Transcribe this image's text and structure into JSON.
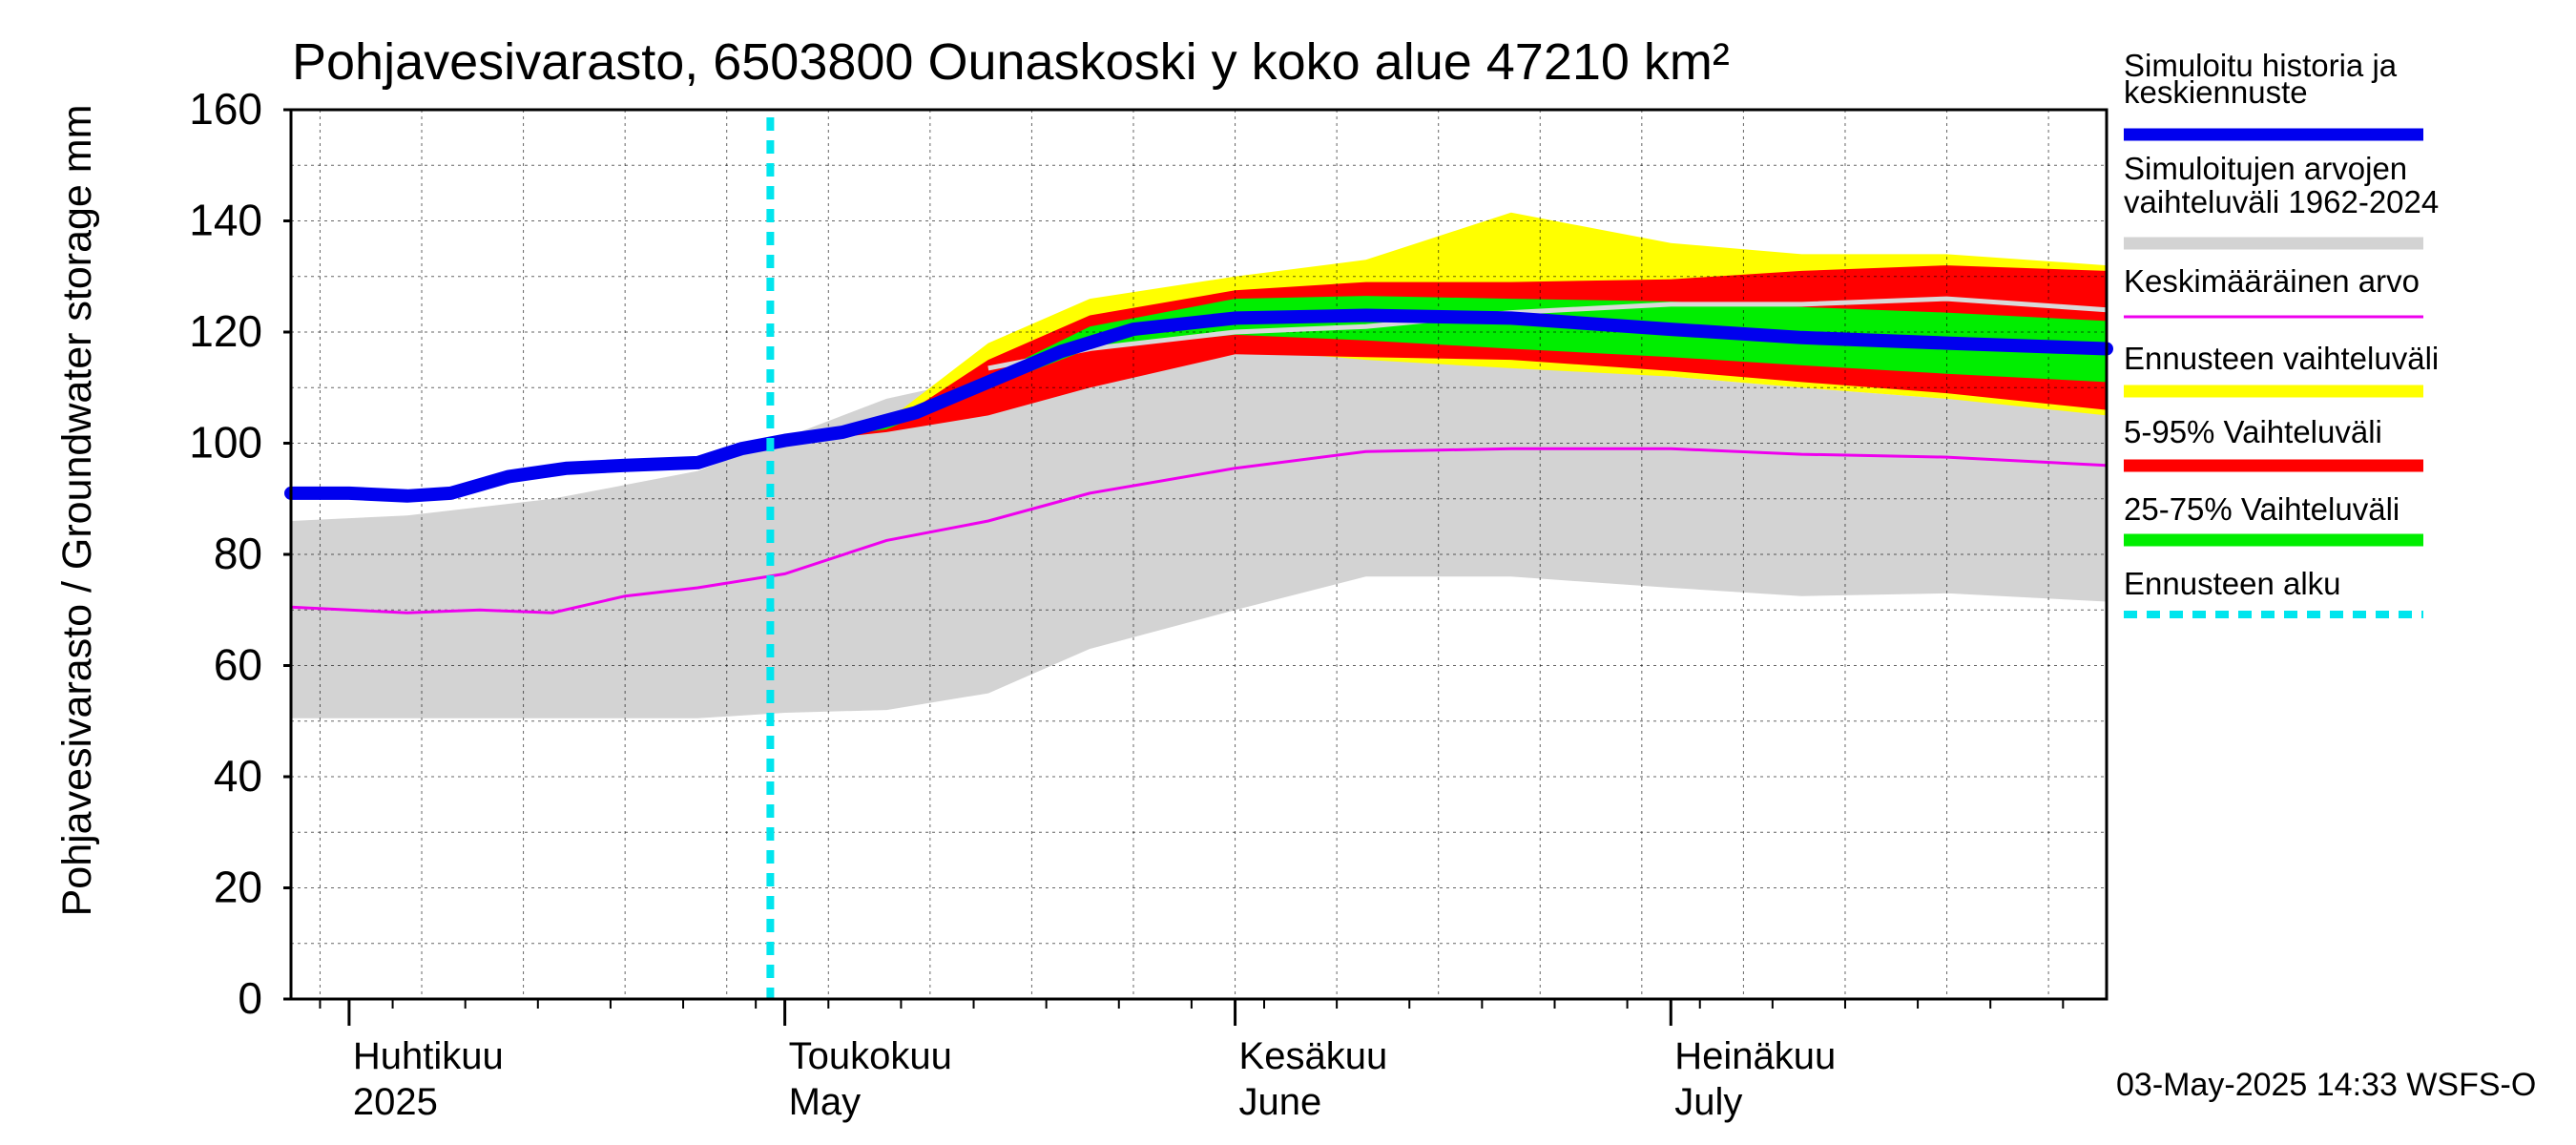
{
  "chart_data": {
    "type": "area",
    "title": "Pohjavesivarasto, 6503800 Ounaskoski y koko alue 47210 km²",
    "ylabel": "Pohjavesivarasto / Groundwater storage   mm",
    "ylim": [
      0,
      160
    ],
    "yticks": [
      0,
      20,
      40,
      60,
      80,
      100,
      120,
      140,
      160
    ],
    "xlim": [
      "2025-03-28",
      "2025-07-31"
    ],
    "grid": true,
    "legend_position": "right",
    "month_labels": [
      {
        "fi": "Huhtikuu",
        "en": "2025",
        "date": "2025-04-01"
      },
      {
        "fi": "Toukokuu",
        "en": "May",
        "date": "2025-05-01"
      },
      {
        "fi": "Kesäkuu",
        "en": "June",
        "date": "2025-06-01"
      },
      {
        "fi": "Heinäkuu",
        "en": "July",
        "date": "2025-07-01"
      }
    ],
    "forecast_start": "2025-04-30",
    "footer": "03-May-2025 14:33 WSFS-O",
    "colors": {
      "history": "#0000ee",
      "range_hist": "#d3d3d3",
      "mean": "#ee00ee",
      "forecast_range": "#ffff00",
      "p5_95": "#ff0000",
      "p25_75": "#00ee00",
      "forecast_start": "#00e5ee",
      "median_hist": "#d9d9d9"
    },
    "legend": [
      {
        "label": "Simuloitu historia ja keskiennuste",
        "color": "#0000ee",
        "style": "thick"
      },
      {
        "label": "Simuloitujen arvojen vaihteluväli 1962-2024",
        "color": "#d3d3d3",
        "style": "thick"
      },
      {
        "label": "Keskimääräinen arvo",
        "color": "#ee00ee",
        "style": "thin"
      },
      {
        "label": "Ennusteen vaihteluväli",
        "color": "#ffff00",
        "style": "thick"
      },
      {
        "label": "5-95% Vaihteluväli",
        "color": "#ff0000",
        "style": "thick"
      },
      {
        "label": "25-75% Vaihteluväli",
        "color": "#00ee00",
        "style": "thick"
      },
      {
        "label": "Ennusteen alku",
        "color": "#00e5ee",
        "style": "dashed"
      }
    ],
    "series": {
      "hist_range": {
        "x": [
          "2025-03-28",
          "2025-04-05",
          "2025-04-15",
          "2025-04-25",
          "2025-05-01",
          "2025-05-08",
          "2025-05-15",
          "2025-05-22",
          "2025-06-01",
          "2025-06-10",
          "2025-06-20",
          "2025-07-01",
          "2025-07-10",
          "2025-07-20",
          "2025-07-31"
        ],
        "lower": [
          50.5,
          50.5,
          50.5,
          50.5,
          51.5,
          52,
          55,
          63,
          70,
          76,
          76,
          74,
          72.5,
          73,
          71.5
        ],
        "upper": [
          86,
          87,
          90,
          95,
          101,
          108,
          112,
          116,
          118,
          117,
          115,
          112,
          110,
          108,
          106
        ]
      },
      "mean": {
        "x": [
          "2025-03-28",
          "2025-04-05",
          "2025-04-10",
          "2025-04-15",
          "2025-04-20",
          "2025-04-25",
          "2025-05-01",
          "2025-05-08",
          "2025-05-15",
          "2025-05-22",
          "2025-06-01",
          "2025-06-10",
          "2025-06-20",
          "2025-07-01",
          "2025-07-10",
          "2025-07-20",
          "2025-07-31"
        ],
        "y": [
          70.5,
          69.5,
          70,
          69.5,
          72.5,
          74,
          76.5,
          82.5,
          86,
          91,
          95.5,
          98.5,
          99,
          99,
          98,
          97.5,
          96
        ]
      },
      "forecast_range": {
        "x": [
          "2025-05-01",
          "2025-05-08",
          "2025-05-15",
          "2025-05-22",
          "2025-06-01",
          "2025-06-10",
          "2025-06-20",
          "2025-07-01",
          "2025-07-10",
          "2025-07-20",
          "2025-07-31"
        ],
        "lower": [
          100,
          103,
          108,
          114,
          117,
          115,
          113.5,
          112,
          110,
          108,
          105
        ],
        "upper": [
          100,
          104,
          118,
          126,
          130,
          133,
          141.5,
          136,
          134,
          134,
          132
        ]
      },
      "p5_95": {
        "x": [
          "2025-05-01",
          "2025-05-08",
          "2025-05-15",
          "2025-05-22",
          "2025-06-01",
          "2025-06-10",
          "2025-06-20",
          "2025-07-01",
          "2025-07-10",
          "2025-07-20",
          "2025-07-31"
        ],
        "lower": [
          100,
          102,
          105,
          110,
          116,
          115.5,
          115,
          113,
          111,
          109,
          106
        ],
        "upper": [
          100,
          103,
          115,
          123,
          127.5,
          129,
          129,
          129.5,
          131,
          132,
          131
        ]
      },
      "p25_75": {
        "x": [
          "2025-05-01",
          "2025-05-08",
          "2025-05-15",
          "2025-05-22",
          "2025-06-01",
          "2025-06-10",
          "2025-06-20",
          "2025-07-01",
          "2025-07-10",
          "2025-07-20",
          "2025-07-31"
        ],
        "lower": [
          100,
          102.5,
          110,
          117,
          119.5,
          118.5,
          117,
          115.5,
          114,
          112.5,
          111
        ],
        "upper": [
          100,
          103,
          112,
          121,
          126,
          126.5,
          126,
          125.5,
          124.5,
          123.5,
          122
        ]
      },
      "median_hist": {
        "x": [
          "2025-05-15",
          "2025-05-22",
          "2025-06-01",
          "2025-06-10",
          "2025-06-20",
          "2025-07-01",
          "2025-07-10",
          "2025-07-20",
          "2025-07-31"
        ],
        "y": [
          113.5,
          117,
          120,
          121,
          123.5,
          125,
          125,
          126,
          124
        ]
      },
      "history": {
        "x": [
          "2025-03-28",
          "2025-04-01",
          "2025-04-05",
          "2025-04-08",
          "2025-04-12",
          "2025-04-16",
          "2025-04-20",
          "2025-04-25",
          "2025-04-28",
          "2025-05-01",
          "2025-05-05",
          "2025-05-10",
          "2025-05-15",
          "2025-05-20",
          "2025-05-25",
          "2025-06-01",
          "2025-06-10",
          "2025-06-20",
          "2025-07-01",
          "2025-07-10",
          "2025-07-20",
          "2025-07-31"
        ],
        "y": [
          91,
          91,
          90.5,
          91,
          94,
          95.5,
          96,
          96.5,
          99,
          100.5,
          102,
          105.5,
          111,
          116.5,
          120.5,
          122.5,
          123,
          122.5,
          120.5,
          119,
          118,
          117
        ]
      }
    }
  }
}
